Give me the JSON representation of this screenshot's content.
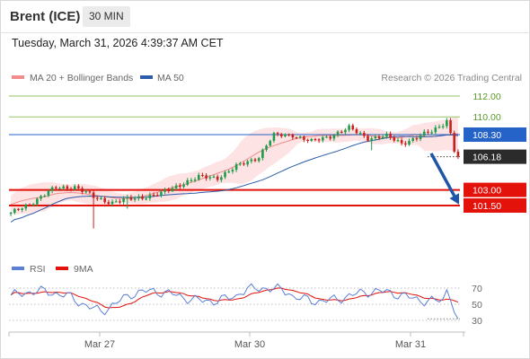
{
  "header": {
    "instrument": "Brent (ICE)",
    "timeframe": "30 MIN",
    "timestamp": "Tuesday, March 31, 2026 4:39:37 AM CET"
  },
  "legend": {
    "ma20_bb": "MA 20 + Bollinger Bands",
    "ma50": "MA 50",
    "source": "Research © 2026 Trading Central",
    "rsi": "RSI",
    "rsi_ma": "9MA"
  },
  "colors": {
    "ma20": "#f28b8b",
    "ma50": "#2d5ca8",
    "bollinger_fill": "#fde3e3",
    "resistance": "#95c26a",
    "pivot": "#2563c8",
    "support": "#e3120b",
    "current": "#2b2b2b",
    "rsi": "#5b7fd6",
    "rsi_ma": "#e3120b",
    "bull_candle": "#1e9c4a",
    "bear_candle": "#c8201b",
    "arrow": "#1f55a8"
  },
  "chart_data": [
    {
      "type": "candlestick",
      "title": "Brent (ICE)",
      "x_tick_labels": [
        "Mar 27",
        "Mar 30",
        "Mar 31"
      ],
      "y_range": [
        99.3,
        113.0
      ],
      "levels": [
        {
          "value": 112.0,
          "label": "112.00",
          "kind": "resistance"
        },
        {
          "value": 110.0,
          "label": "110.00",
          "kind": "resistance"
        },
        {
          "value": 108.3,
          "label": "108.30",
          "kind": "pivot"
        },
        {
          "value": 106.18,
          "label": "106.18",
          "kind": "current"
        },
        {
          "value": 103.0,
          "label": "103.00",
          "kind": "support"
        },
        {
          "value": 101.5,
          "label": "101.50",
          "kind": "support"
        }
      ],
      "key_points": [
        {
          "x": "Mar 27",
          "close": 101.9
        },
        {
          "x": "Mar 30",
          "close": 108.2
        },
        {
          "x": "Mar 31",
          "close": 106.18
        }
      ],
      "forecast_arrow": {
        "from": 106.5,
        "to": 101.6
      }
    },
    {
      "type": "line",
      "title": "RSI",
      "y_ticks": [
        70,
        50,
        30
      ],
      "series": [
        {
          "name": "RSI",
          "key_points": [
            {
              "x": "Mar 27",
              "value": 50
            },
            {
              "x": "Mar 30",
              "value": 63
            },
            {
              "x": "Mar 31",
              "value": 32
            }
          ]
        },
        {
          "name": "9MA",
          "key_points": [
            {
              "x": "Mar 27",
              "value": 53
            },
            {
              "x": "Mar 30",
              "value": 62
            },
            {
              "x": "Mar 31",
              "value": 52
            }
          ]
        }
      ]
    }
  ]
}
